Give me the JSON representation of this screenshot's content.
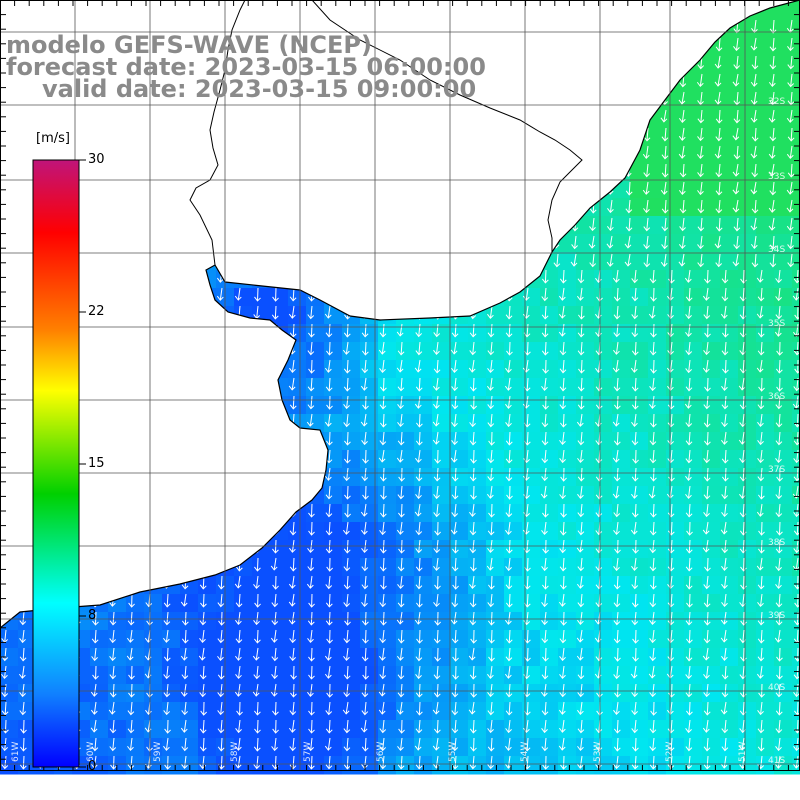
{
  "title": {
    "line1": "modelo GEFS-WAVE (NCEP)",
    "line2": "forecast date: 2023-03-15 06:00:00",
    "line3": "valid date: 2023-03-15 09:00:00"
  },
  "colorbar": {
    "unit": "[m/s]",
    "ticks": [
      "30",
      "22",
      "15",
      "8",
      "0"
    ],
    "stops": [
      "#c0147a",
      "#ff0000",
      "#ff8000",
      "#ffff00",
      "#00d000",
      "#00ffff",
      "#1080ff",
      "#0000ff"
    ]
  },
  "map": {
    "lat_labels": [
      "32S",
      "33S",
      "34S",
      "35S",
      "36S",
      "37S",
      "38S",
      "39S",
      "40S",
      "41S"
    ],
    "lon_labels": [
      "61W",
      "60W",
      "59W",
      "58W",
      "57W",
      "56W",
      "55W",
      "54W",
      "53W",
      "52W",
      "51W"
    ],
    "colors": {
      "land": "#ffffff",
      "grid": "#555555",
      "coast": "#000000",
      "arrow": "#ffffff",
      "field_low": "#0a50ff",
      "field_mid": "#00e6f0",
      "field_high": "#20e060"
    }
  }
}
